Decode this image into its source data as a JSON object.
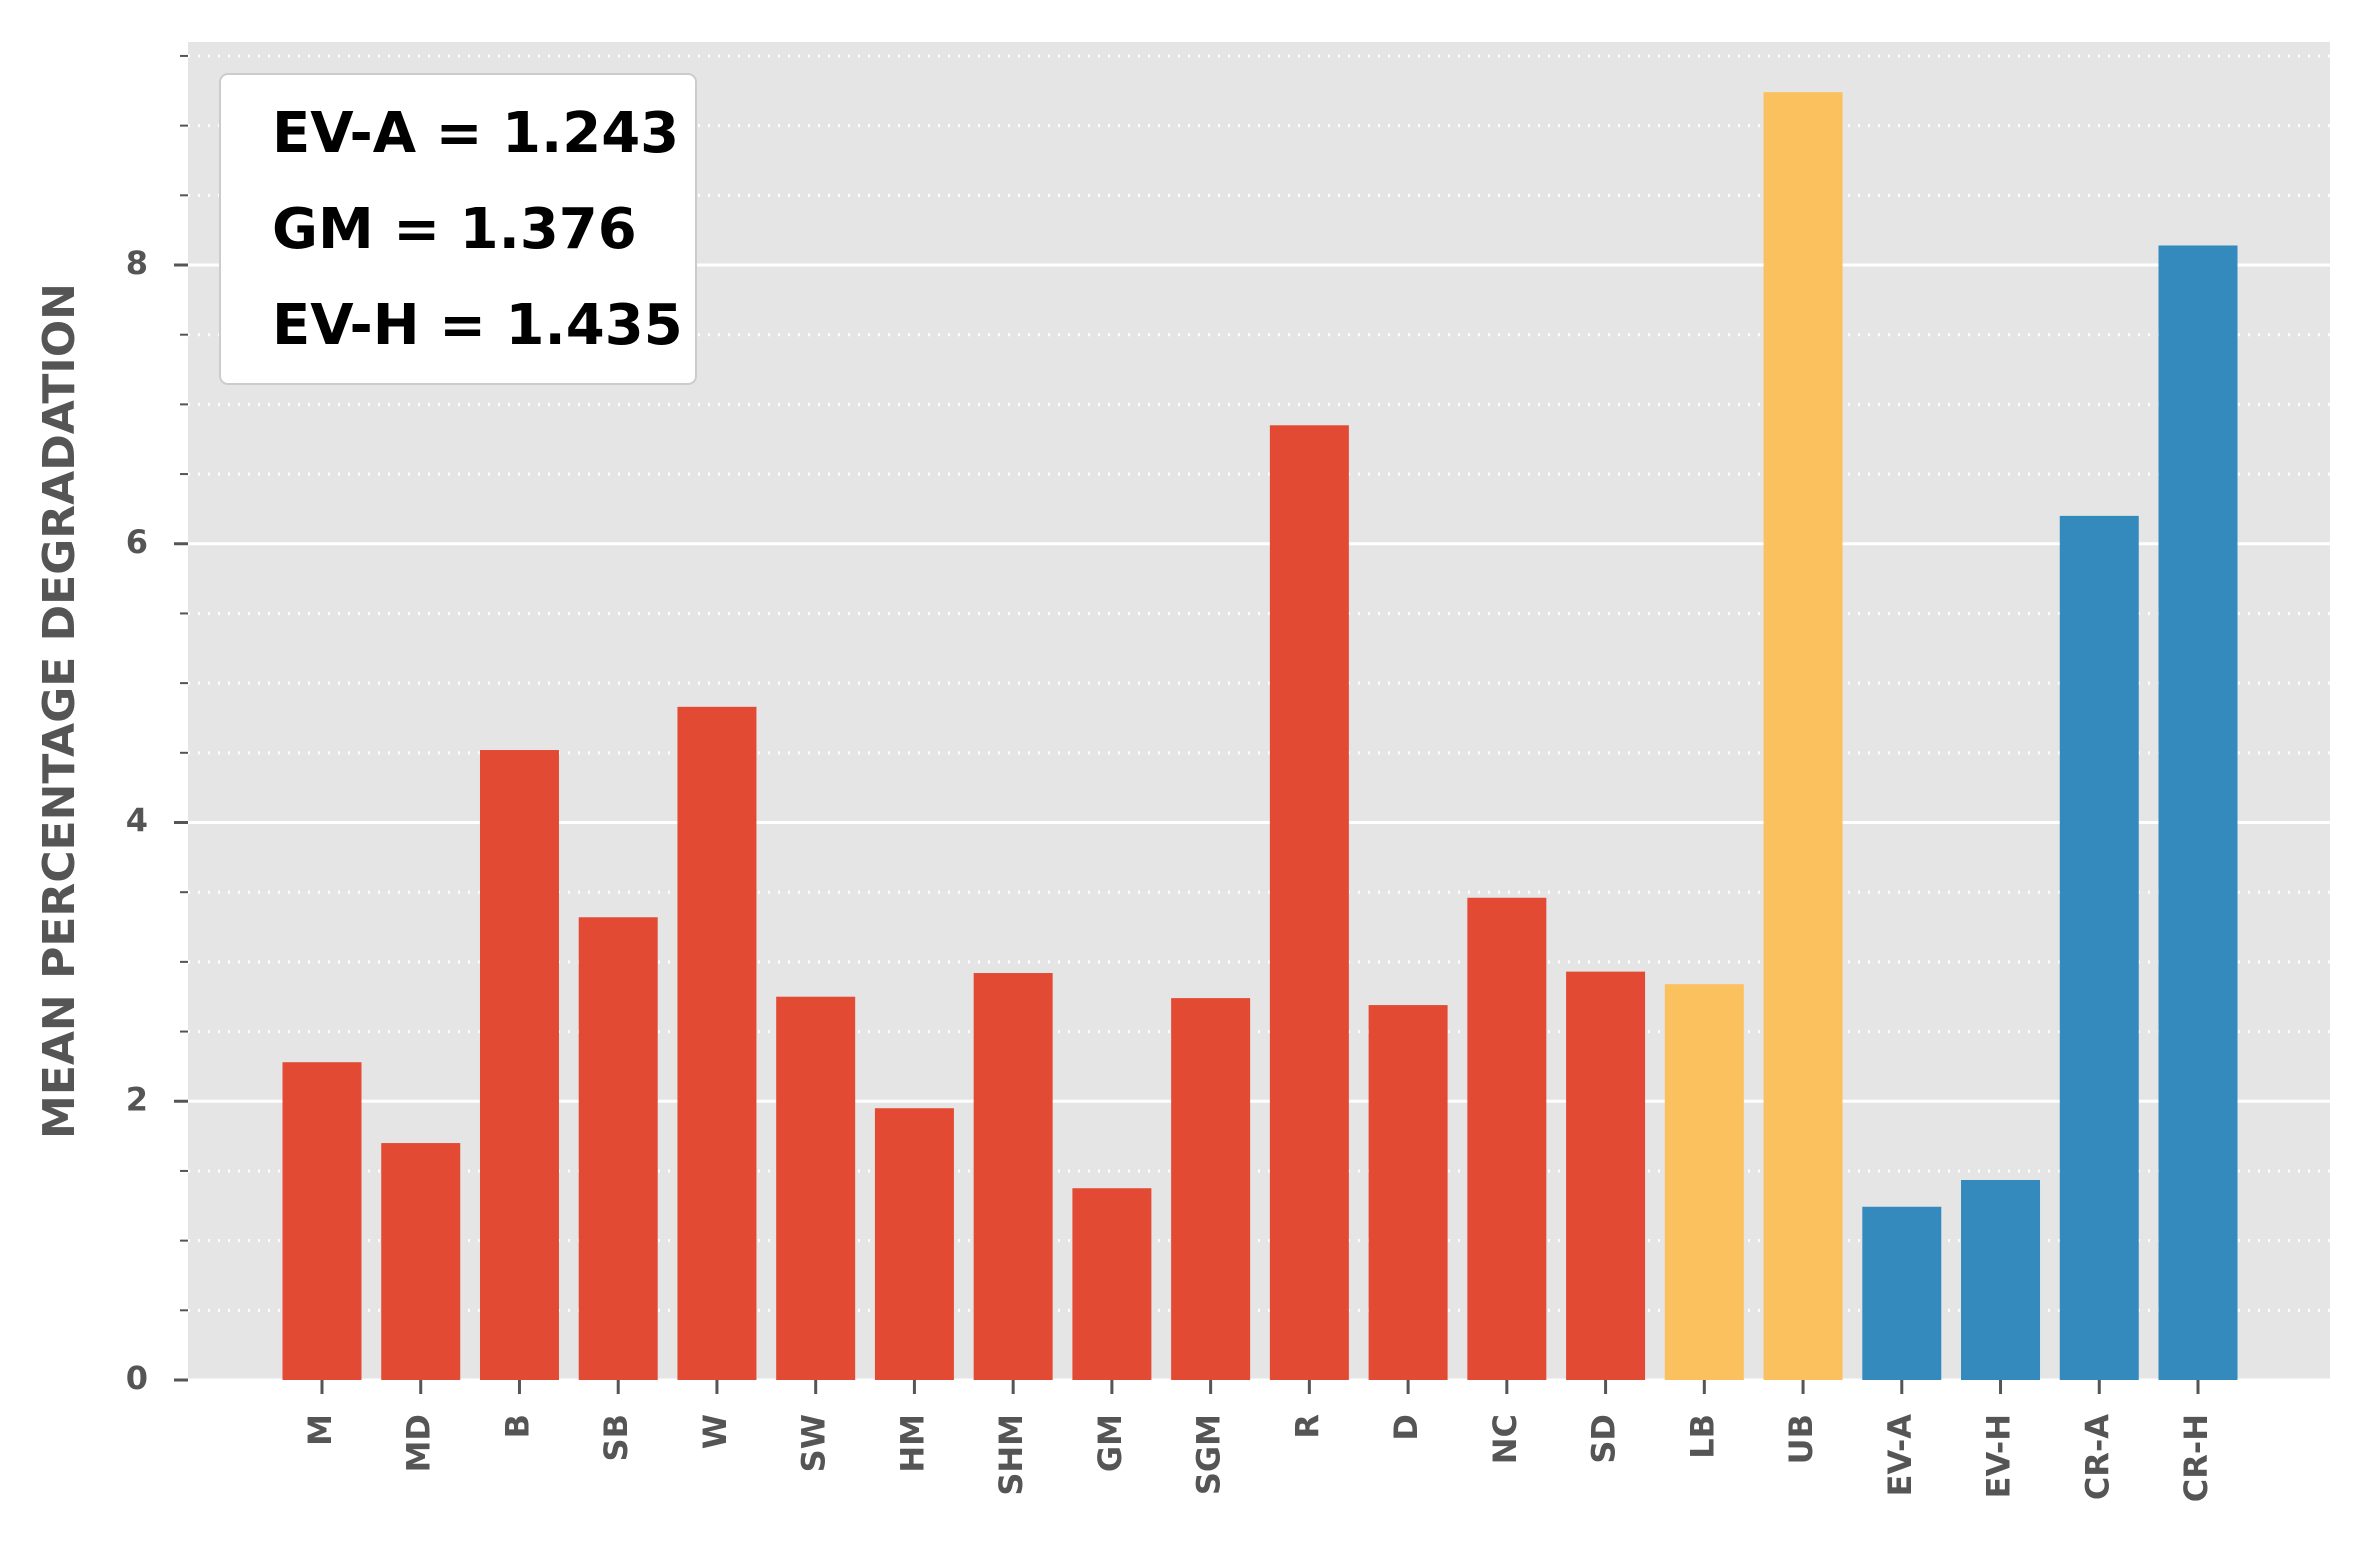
{
  "chart_data": {
    "type": "bar",
    "ylabel": "MEAN PERCENTAGE DEGRADATION",
    "xlabel": "",
    "title": "",
    "ylim": [
      0,
      9.6
    ],
    "yticks": [
      0,
      2,
      4,
      6,
      8
    ],
    "ytick_labels": [
      "0",
      "2",
      "4",
      "6",
      "8"
    ],
    "minor_ytick_step": 0.5,
    "grid": "major solid white lines, minor dotted white lines",
    "background": "#e5e5e5",
    "categories": [
      "M",
      "MD",
      "B",
      "SB",
      "W",
      "SW",
      "HM",
      "SHM",
      "GM",
      "SGM",
      "R",
      "D",
      "NC",
      "SD",
      "LB",
      "UB",
      "EV-A",
      "EV-H",
      "CR-A",
      "CR-H"
    ],
    "values": [
      2.28,
      1.7,
      4.52,
      3.32,
      4.83,
      2.75,
      1.95,
      2.92,
      1.376,
      2.74,
      6.85,
      2.69,
      3.46,
      2.93,
      2.84,
      9.24,
      1.243,
      1.435,
      6.2,
      8.14
    ],
    "bar_colors": [
      "#e24a33",
      "#e24a33",
      "#e24a33",
      "#e24a33",
      "#e24a33",
      "#e24a33",
      "#e24a33",
      "#e24a33",
      "#e24a33",
      "#e24a33",
      "#e24a33",
      "#e24a33",
      "#e24a33",
      "#e24a33",
      "#fbc15e",
      "#fbc15e",
      "#348abd",
      "#348abd",
      "#348abd",
      "#348abd"
    ],
    "annotations": [
      "EV-A = 1.243",
      "GM = 1.376",
      "EV-H = 1.435"
    ],
    "annotation_placement": "top-left"
  }
}
